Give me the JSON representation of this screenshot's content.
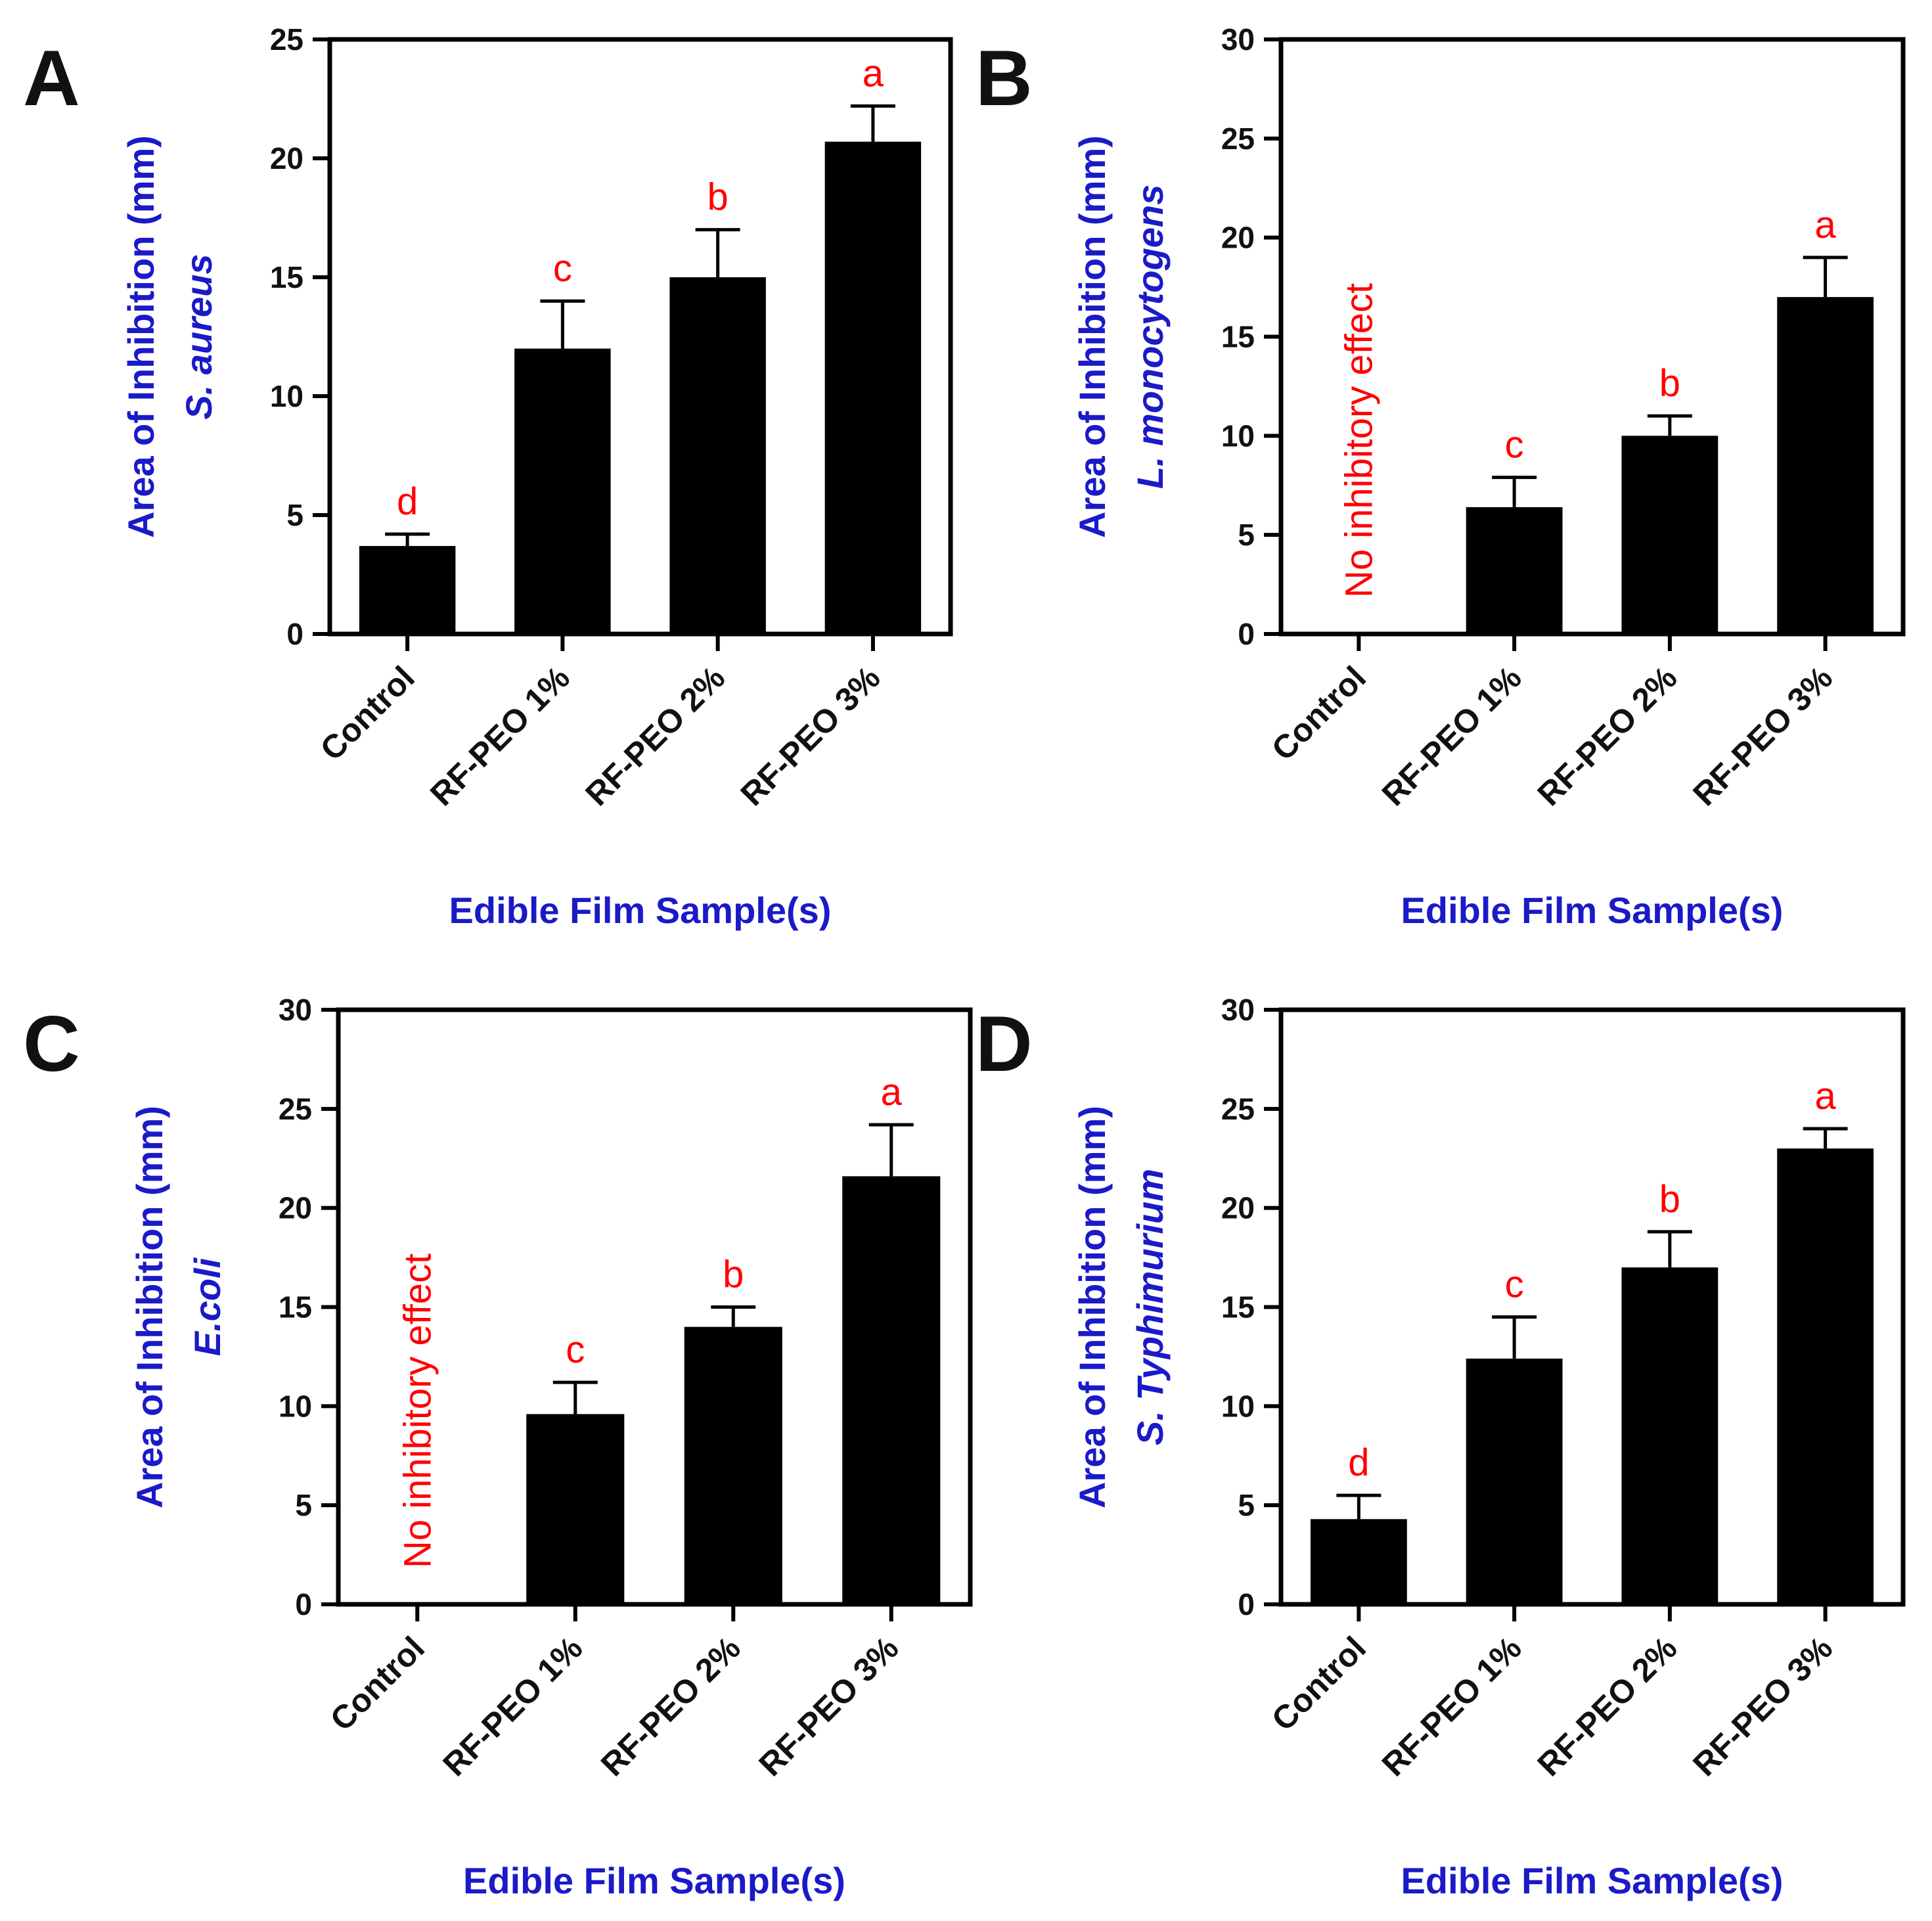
{
  "figure": {
    "colors": {
      "title": "#1a1ac8",
      "annotation": "#ff0000",
      "bar": "#000000",
      "axis": "#000000"
    }
  },
  "chart_data": [
    {
      "panel": "A",
      "type": "bar",
      "categories": [
        "Control",
        "RF-PEO 1%",
        "RF-PEO 2%",
        "RF-PEO 3%"
      ],
      "values": [
        3.7,
        12.0,
        15.0,
        20.7
      ],
      "errors": [
        0.5,
        2.0,
        2.0,
        1.5
      ],
      "significance": [
        "d",
        "c",
        "b",
        "a"
      ],
      "note": "",
      "ylabel": "Area of Inhibition (mm)",
      "organism": "S. aureus",
      "xlabel": "Edible Film Sample(s)",
      "ylim": [
        0,
        25
      ],
      "yticks": [
        0,
        5,
        10,
        15,
        20,
        25
      ]
    },
    {
      "panel": "B",
      "type": "bar",
      "categories": [
        "Control",
        "RF-PEO 1%",
        "RF-PEO 2%",
        "RF-PEO 3%"
      ],
      "values": [
        0,
        6.4,
        10.0,
        17.0
      ],
      "errors": [
        0,
        1.5,
        1.0,
        2.0
      ],
      "significance": [
        "",
        "c",
        "b",
        "a"
      ],
      "note": "No inhibitory effect",
      "ylabel": "Area of Inhibition (mm)",
      "organism": "L. monocytogens",
      "xlabel": "Edible Film Sample(s)",
      "ylim": [
        0,
        30
      ],
      "yticks": [
        0,
        5,
        10,
        15,
        20,
        25,
        30
      ]
    },
    {
      "panel": "C",
      "type": "bar",
      "categories": [
        "Control",
        "RF-PEO 1%",
        "RF-PEO 2%",
        "RF-PEO 3%"
      ],
      "values": [
        0,
        9.6,
        14.0,
        21.6
      ],
      "errors": [
        0,
        1.6,
        1.0,
        2.6
      ],
      "significance": [
        "",
        "c",
        "b",
        "a"
      ],
      "note": "No inhibitory effect",
      "ylabel": "Area of Inhibition (mm)",
      "organism": "E.coli",
      "xlabel": "Edible Film Sample(s)",
      "ylim": [
        0,
        30
      ],
      "yticks": [
        0,
        5,
        10,
        15,
        20,
        25,
        30
      ]
    },
    {
      "panel": "D",
      "type": "bar",
      "categories": [
        "Control",
        "RF-PEO 1%",
        "RF-PEO 2%",
        "RF-PEO 3%"
      ],
      "values": [
        4.3,
        12.4,
        17.0,
        23.0
      ],
      "errors": [
        1.2,
        2.1,
        1.8,
        1.0
      ],
      "significance": [
        "d",
        "c",
        "b",
        "a"
      ],
      "note": "",
      "ylabel": "Area of Inhibition (mm)",
      "organism": "S. Typhimurium",
      "xlabel": "Edible Film Sample(s)",
      "ylim": [
        0,
        30
      ],
      "yticks": [
        0,
        5,
        10,
        15,
        20,
        25,
        30
      ]
    }
  ]
}
